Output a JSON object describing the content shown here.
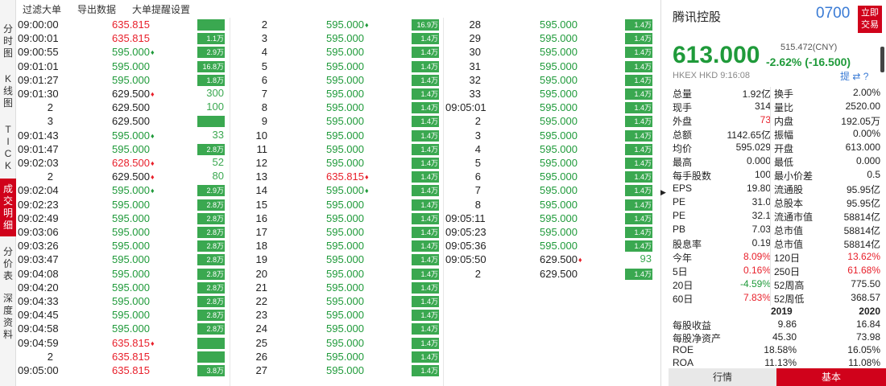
{
  "sidebar": {
    "tabs": [
      {
        "label": [
          "分",
          "时",
          "图"
        ]
      },
      {
        "label": [
          "K",
          "线",
          "图"
        ]
      },
      {
        "label": [
          "T",
          "I",
          "C",
          "K"
        ]
      },
      {
        "label": [
          "成",
          "交",
          "明",
          "细"
        ]
      },
      {
        "label": [
          "分",
          "价",
          "表"
        ]
      },
      {
        "label": [
          "深",
          "度",
          "资",
          "料"
        ]
      }
    ]
  },
  "filters": [
    "过滤大单",
    "导出数据",
    "大单提醒设置"
  ],
  "ticks": {
    "col1": [
      {
        "t": "09:00:00",
        "p": "635.815",
        "dir": "up",
        "v": "",
        "vt": "bar"
      },
      {
        "t": "09:00:01",
        "p": "635.815",
        "dir": "up",
        "v": "1.1万",
        "vt": "bar"
      },
      {
        "t": "09:00:55",
        "p": "595.000",
        "dir": "dn",
        "arrow": "♦",
        "v": "2.9万",
        "vt": "bar"
      },
      {
        "t": "09:01:01",
        "p": "595.000",
        "dir": "dn",
        "v": "16.8万",
        "vt": "bar"
      },
      {
        "t": "09:01:27",
        "p": "595.000",
        "dir": "dn",
        "v": "1.8万",
        "vt": "bar"
      },
      {
        "t": "09:01:30",
        "p": "629.500",
        "dir": "flat",
        "arrow": "♦",
        "v": "300",
        "vt": "num"
      },
      {
        "t": "2",
        "p": "629.500",
        "dir": "flat",
        "v": "100",
        "vt": "num",
        "seq": true
      },
      {
        "t": "3",
        "p": "629.500",
        "dir": "flat",
        "v": "",
        "vt": "bar",
        "seq": true
      },
      {
        "t": "09:01:43",
        "p": "595.000",
        "dir": "dn",
        "arrow": "♦",
        "v": "33",
        "vt": "num"
      },
      {
        "t": "09:01:47",
        "p": "595.000",
        "dir": "dn",
        "v": "2.8万",
        "vt": "bar"
      },
      {
        "t": "09:02:03",
        "p": "628.500",
        "dir": "up",
        "arrow": "♦",
        "v": "52",
        "vt": "num"
      },
      {
        "t": "2",
        "p": "629.500",
        "dir": "flat",
        "arrow": "♦",
        "v": "80",
        "vt": "num",
        "seq": true
      },
      {
        "t": "09:02:04",
        "p": "595.000",
        "dir": "dn",
        "arrow": "♦",
        "v": "2.9万",
        "vt": "bar"
      },
      {
        "t": "09:02:23",
        "p": "595.000",
        "dir": "dn",
        "v": "2.8万",
        "vt": "bar"
      },
      {
        "t": "09:02:49",
        "p": "595.000",
        "dir": "dn",
        "v": "2.8万",
        "vt": "bar"
      },
      {
        "t": "09:03:06",
        "p": "595.000",
        "dir": "dn",
        "v": "2.8万",
        "vt": "bar"
      },
      {
        "t": "09:03:26",
        "p": "595.000",
        "dir": "dn",
        "v": "2.8万",
        "vt": "bar"
      },
      {
        "t": "09:03:47",
        "p": "595.000",
        "dir": "dn",
        "v": "2.8万",
        "vt": "bar"
      },
      {
        "t": "09:04:08",
        "p": "595.000",
        "dir": "dn",
        "v": "2.8万",
        "vt": "bar"
      },
      {
        "t": "09:04:20",
        "p": "595.000",
        "dir": "dn",
        "v": "2.8万",
        "vt": "bar"
      },
      {
        "t": "09:04:33",
        "p": "595.000",
        "dir": "dn",
        "v": "2.8万",
        "vt": "bar"
      },
      {
        "t": "09:04:45",
        "p": "595.000",
        "dir": "dn",
        "v": "2.8万",
        "vt": "bar"
      },
      {
        "t": "09:04:58",
        "p": "595.000",
        "dir": "dn",
        "v": "2.8万",
        "vt": "bar"
      },
      {
        "t": "09:04:59",
        "p": "635.815",
        "dir": "up",
        "arrow": "♦",
        "v": "",
        "vt": "bar"
      },
      {
        "t": "2",
        "p": "635.815",
        "dir": "up",
        "v": "",
        "vt": "bar",
        "seq": true
      },
      {
        "t": "09:05:00",
        "p": "635.815",
        "dir": "up",
        "v": "3.8万",
        "vt": "bar"
      }
    ],
    "col2": [
      {
        "t": "2",
        "p": "595.000",
        "dir": "dn",
        "arrow": "♦",
        "v": "16.9万",
        "vt": "bar",
        "seq": true
      },
      {
        "t": "3",
        "p": "595.000",
        "dir": "dn",
        "v": "1.4万",
        "vt": "bar",
        "seq": true
      },
      {
        "t": "4",
        "p": "595.000",
        "dir": "dn",
        "v": "1.4万",
        "vt": "bar",
        "seq": true
      },
      {
        "t": "5",
        "p": "595.000",
        "dir": "dn",
        "v": "1.4万",
        "vt": "bar",
        "seq": true
      },
      {
        "t": "6",
        "p": "595.000",
        "dir": "dn",
        "v": "1.4万",
        "vt": "bar",
        "seq": true
      },
      {
        "t": "7",
        "p": "595.000",
        "dir": "dn",
        "v": "1.4万",
        "vt": "bar",
        "seq": true
      },
      {
        "t": "8",
        "p": "595.000",
        "dir": "dn",
        "v": "1.4万",
        "vt": "bar",
        "seq": true
      },
      {
        "t": "9",
        "p": "595.000",
        "dir": "dn",
        "v": "1.4万",
        "vt": "bar",
        "seq": true
      },
      {
        "t": "10",
        "p": "595.000",
        "dir": "dn",
        "v": "1.4万",
        "vt": "bar",
        "seq": true
      },
      {
        "t": "11",
        "p": "595.000",
        "dir": "dn",
        "v": "1.4万",
        "vt": "bar",
        "seq": true
      },
      {
        "t": "12",
        "p": "595.000",
        "dir": "dn",
        "v": "1.4万",
        "vt": "bar",
        "seq": true
      },
      {
        "t": "13",
        "p": "635.815",
        "dir": "up",
        "arrow": "♦",
        "v": "1.4万",
        "vt": "bar",
        "seq": true
      },
      {
        "t": "14",
        "p": "595.000",
        "dir": "dn",
        "arrow": "♦",
        "v": "1.4万",
        "vt": "bar",
        "seq": true
      },
      {
        "t": "15",
        "p": "595.000",
        "dir": "dn",
        "v": "1.4万",
        "vt": "bar",
        "seq": true
      },
      {
        "t": "16",
        "p": "595.000",
        "dir": "dn",
        "v": "1.4万",
        "vt": "bar",
        "seq": true
      },
      {
        "t": "17",
        "p": "595.000",
        "dir": "dn",
        "v": "1.4万",
        "vt": "bar",
        "seq": true
      },
      {
        "t": "18",
        "p": "595.000",
        "dir": "dn",
        "v": "1.4万",
        "vt": "bar",
        "seq": true
      },
      {
        "t": "19",
        "p": "595.000",
        "dir": "dn",
        "v": "1.4万",
        "vt": "bar",
        "seq": true
      },
      {
        "t": "20",
        "p": "595.000",
        "dir": "dn",
        "v": "1.4万",
        "vt": "bar",
        "seq": true
      },
      {
        "t": "21",
        "p": "595.000",
        "dir": "dn",
        "v": "1.4万",
        "vt": "bar",
        "seq": true
      },
      {
        "t": "22",
        "p": "595.000",
        "dir": "dn",
        "v": "1.4万",
        "vt": "bar",
        "seq": true
      },
      {
        "t": "23",
        "p": "595.000",
        "dir": "dn",
        "v": "1.4万",
        "vt": "bar",
        "seq": true
      },
      {
        "t": "24",
        "p": "595.000",
        "dir": "dn",
        "v": "1.4万",
        "vt": "bar",
        "seq": true
      },
      {
        "t": "25",
        "p": "595.000",
        "dir": "dn",
        "v": "1.4万",
        "vt": "bar",
        "seq": true
      },
      {
        "t": "26",
        "p": "595.000",
        "dir": "dn",
        "v": "1.4万",
        "vt": "bar",
        "seq": true
      },
      {
        "t": "27",
        "p": "595.000",
        "dir": "dn",
        "v": "1.4万",
        "vt": "bar",
        "seq": true
      }
    ],
    "col3": [
      {
        "t": "28",
        "p": "595.000",
        "dir": "dn",
        "v": "1.4万",
        "vt": "bar",
        "seq": true
      },
      {
        "t": "29",
        "p": "595.000",
        "dir": "dn",
        "v": "1.4万",
        "vt": "bar",
        "seq": true
      },
      {
        "t": "30",
        "p": "595.000",
        "dir": "dn",
        "v": "1.4万",
        "vt": "bar",
        "seq": true
      },
      {
        "t": "31",
        "p": "595.000",
        "dir": "dn",
        "v": "1.4万",
        "vt": "bar",
        "seq": true
      },
      {
        "t": "32",
        "p": "595.000",
        "dir": "dn",
        "v": "1.4万",
        "vt": "bar",
        "seq": true
      },
      {
        "t": "33",
        "p": "595.000",
        "dir": "dn",
        "v": "1.4万",
        "vt": "bar",
        "seq": true
      },
      {
        "t": "09:05:01",
        "p": "595.000",
        "dir": "dn",
        "v": "1.4万",
        "vt": "bar"
      },
      {
        "t": "2",
        "p": "595.000",
        "dir": "dn",
        "v": "1.4万",
        "vt": "bar",
        "seq": true
      },
      {
        "t": "3",
        "p": "595.000",
        "dir": "dn",
        "v": "1.4万",
        "vt": "bar",
        "seq": true
      },
      {
        "t": "4",
        "p": "595.000",
        "dir": "dn",
        "v": "1.4万",
        "vt": "bar",
        "seq": true
      },
      {
        "t": "5",
        "p": "595.000",
        "dir": "dn",
        "v": "1.4万",
        "vt": "bar",
        "seq": true
      },
      {
        "t": "6",
        "p": "595.000",
        "dir": "dn",
        "v": "1.4万",
        "vt": "bar",
        "seq": true
      },
      {
        "t": "7",
        "p": "595.000",
        "dir": "dn",
        "v": "1.4万",
        "vt": "bar",
        "seq": true
      },
      {
        "t": "8",
        "p": "595.000",
        "dir": "dn",
        "v": "1.4万",
        "vt": "bar",
        "seq": true
      },
      {
        "t": "09:05:11",
        "p": "595.000",
        "dir": "dn",
        "v": "1.4万",
        "vt": "bar"
      },
      {
        "t": "09:05:23",
        "p": "595.000",
        "dir": "dn",
        "v": "1.4万",
        "vt": "bar"
      },
      {
        "t": "09:05:36",
        "p": "595.000",
        "dir": "dn",
        "v": "1.4万",
        "vt": "bar"
      },
      {
        "t": "09:05:50",
        "p": "629.500",
        "dir": "flat",
        "arrow": "♦",
        "v": "93",
        "vt": "num"
      },
      {
        "t": "2",
        "p": "629.500",
        "dir": "flat",
        "v": "1.4万",
        "vt": "bar",
        "seq": true
      }
    ]
  },
  "quote": {
    "name": "腾讯控股",
    "code": "0700",
    "trade_btn": [
      "立即",
      "交易"
    ],
    "price": "613.000",
    "sub_price": "515.472(CNY)",
    "change": "-2.62% (-16.500)",
    "exchange": "HKEX  HKD  9:16:08",
    "icons": "提  ⇄  ?",
    "stats": [
      [
        "总量",
        "1.92亿",
        "换手",
        "2.00%",
        "dn",
        "dn"
      ],
      [
        "现手",
        "314",
        "量比",
        "2520.00",
        "dn",
        "dn"
      ],
      [
        "外盘",
        "73",
        "内盘",
        "192.05万",
        "up",
        "dn"
      ],
      [
        "总额",
        "1142.65亿",
        "振幅",
        "0.00%",
        "dn",
        "dn"
      ],
      [
        "均价",
        "595.029",
        "开盘",
        "613.000",
        "dn",
        "dn"
      ],
      [
        "最高",
        "0.000",
        "最低",
        "0.000",
        "dn",
        "dn"
      ],
      [
        "每手股数",
        "100",
        "最小价差",
        "0.5",
        "dn",
        "dn"
      ],
      [
        "EPS",
        "19.80",
        "流通股",
        "95.95亿",
        "dn",
        "dn"
      ],
      [
        "PE",
        "31.0",
        "总股本",
        "95.95亿",
        "dn",
        "dn"
      ],
      [
        "PE",
        "32.1",
        "流通市值",
        "58814亿",
        "dn",
        "dn"
      ],
      [
        "PB",
        "7.03",
        "总市值",
        "58814亿",
        "dn",
        "dn"
      ],
      [
        "股息率",
        "0.19",
        "总市值",
        "58814亿",
        "dn",
        "dn"
      ],
      [
        "今年",
        "8.09%",
        "120日",
        "13.62%",
        "up",
        "up"
      ],
      [
        "5日",
        "0.16%",
        "250日",
        "61.68%",
        "up",
        "up"
      ],
      [
        "20日",
        "-4.59%",
        "52周高",
        "775.50",
        "green",
        "dn"
      ],
      [
        "60日",
        "7.83%",
        "52周低",
        "368.57",
        "up",
        "dn"
      ]
    ],
    "years": [
      "2019",
      "2020"
    ],
    "financials": [
      [
        "每股收益",
        "9.86",
        "16.84"
      ],
      [
        "每股净资产",
        "45.30",
        "73.98"
      ],
      [
        "ROE",
        "18.58%",
        "16.05%"
      ],
      [
        "ROA",
        "11.13%",
        "11.08%"
      ]
    ],
    "bottom": {
      "left": "行情",
      "right": "基本"
    }
  }
}
